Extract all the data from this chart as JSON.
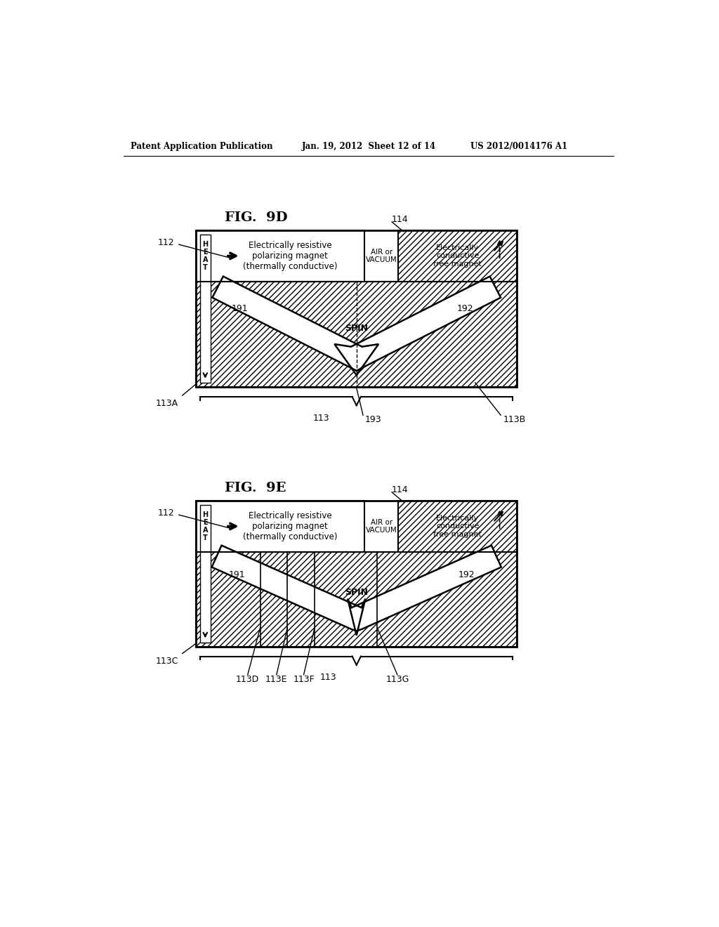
{
  "header_left": "Patent Application Publication",
  "header_mid": "Jan. 19, 2012  Sheet 12 of 14",
  "header_right": "US 2012/0014176 A1",
  "fig9d_title": "FIG.  9D",
  "fig9e_title": "FIG.  9E",
  "bg_color": "#ffffff",
  "label_112_9d": "112",
  "label_113a_9d": "113A",
  "label_113_9d": "113",
  "label_113b_9d": "113B",
  "label_193_9d": "193",
  "label_114_9d": "114",
  "label_191_9d": "191",
  "label_192_9d": "192",
  "label_spin_9d": "SPIN",
  "label_heat_9d": "H\nE\nA\nT",
  "text_polarizing": "Electrically resistive\npolarizing magnet\n(thermally conductive)",
  "text_air_vacuum": "AIR or\nVACUUM",
  "text_free_magnet": "Electrically\nconductive\nfree magnet",
  "label_112_9e": "112",
  "label_113c_9e": "113C",
  "label_113_9e": "113",
  "label_113d_9e": "113D",
  "label_113e_9e": "113E",
  "label_113f_9e": "113F",
  "label_113g_9e": "113G",
  "label_114_9e": "114",
  "label_191_9e": "191",
  "label_192_9e": "192",
  "label_spin_9e": "SPIN",
  "label_heat_9e": "H\nE\nA\nT"
}
